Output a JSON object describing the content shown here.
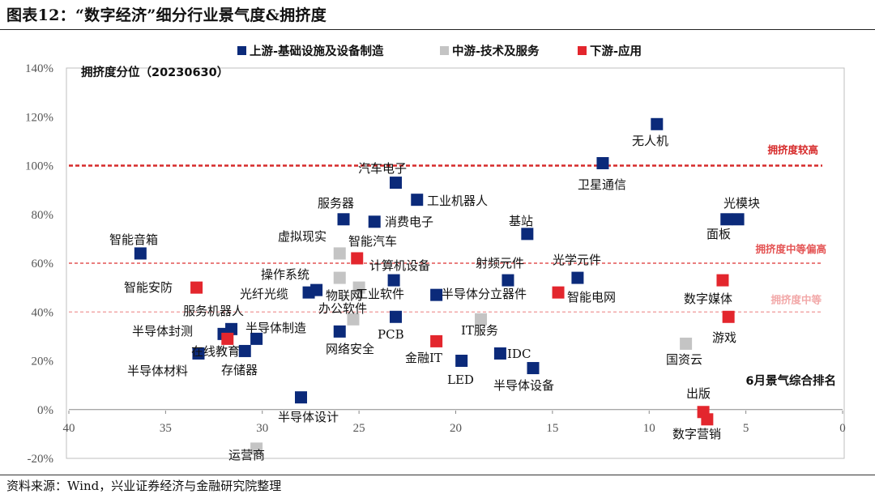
{
  "figure": {
    "title": "图表12：“数字经济”细分行业景气度&拥挤度",
    "source": "资料来源：Wind，兴业证券经济与金融研究院整理"
  },
  "chart_data": {
    "type": "scatter",
    "ylabel": "拥挤度分位（20230630）",
    "xlabel": "6月景气综合排名",
    "xlim": [
      40,
      0
    ],
    "ylim": [
      -0.2,
      1.4
    ],
    "x_ticks": [
      "40",
      "35",
      "30",
      "25",
      "20",
      "15",
      "10",
      "5",
      "0"
    ],
    "y_ticks": [
      "140%",
      "120%",
      "100%",
      "80%",
      "60%",
      "40%",
      "20%",
      "0%",
      "-20%"
    ],
    "legend_position": "top",
    "series": [
      {
        "name": "上游-基础设施及设备制造",
        "color": "#0b2a7a",
        "points": [
          {
            "label": "无人机",
            "x": 9.6,
            "y": 1.17
          },
          {
            "label": "卫星通信",
            "x": 12.4,
            "y": 1.01
          },
          {
            "label": "汽车电子",
            "x": 23.1,
            "y": 0.93
          },
          {
            "label": "工业机器人",
            "x": 22.0,
            "y": 0.86
          },
          {
            "label": "服务器",
            "x": 25.8,
            "y": 0.78
          },
          {
            "label": "消费电子",
            "x": 24.2,
            "y": 0.77
          },
          {
            "label": "光模块",
            "x": 5.4,
            "y": 0.78
          },
          {
            "label": "面板",
            "x": 6.0,
            "y": 0.78
          },
          {
            "label": "基站",
            "x": 16.3,
            "y": 0.72
          },
          {
            "label": "智能音箱",
            "x": 36.3,
            "y": 0.64
          },
          {
            "label": "射频元件",
            "x": 17.3,
            "y": 0.53
          },
          {
            "label": "光学元件",
            "x": 13.7,
            "y": 0.54
          },
          {
            "label": "计算机设备",
            "x": 23.2,
            "y": 0.53
          },
          {
            "label": "光纤光缆",
            "x": 27.6,
            "y": 0.48
          },
          {
            "label": "光纤光缆-2",
            "x": 27.2,
            "y": 0.49
          },
          {
            "label": "半导体分立器件",
            "x": 21.0,
            "y": 0.47
          },
          {
            "label": "PCB",
            "x": 23.1,
            "y": 0.38
          },
          {
            "label": "半导体封测",
            "x": 31.6,
            "y": 0.33
          },
          {
            "label": "半导体封测-2",
            "x": 32.0,
            "y": 0.31
          },
          {
            "label": "半导体制造",
            "x": 30.3,
            "y": 0.29
          },
          {
            "label": "存储器",
            "x": 30.9,
            "y": 0.24
          },
          {
            "label": "网络安全",
            "x": 26.0,
            "y": 0.32
          },
          {
            "label": "半导体材料",
            "x": 33.3,
            "y": 0.23
          },
          {
            "label": "IDC",
            "x": 17.7,
            "y": 0.23
          },
          {
            "label": "LED",
            "x": 19.7,
            "y": 0.2
          },
          {
            "label": "半导体设备",
            "x": 16.0,
            "y": 0.17
          },
          {
            "label": "半导体设计",
            "x": 28.0,
            "y": 0.05
          }
        ]
      },
      {
        "name": "中游-技术及服务",
        "color": "#c4c4c4",
        "points": [
          {
            "label": "虚拟现实",
            "x": 26.0,
            "y": 0.64
          },
          {
            "label": "操作系统",
            "x": 26.0,
            "y": 0.54
          },
          {
            "label": "工业软件",
            "x": 25.0,
            "y": 0.5
          },
          {
            "label": "办公软件",
            "x": 25.3,
            "y": 0.37
          },
          {
            "label": "IT服务",
            "x": 18.7,
            "y": 0.37
          },
          {
            "label": "国资云",
            "x": 8.1,
            "y": 0.27
          },
          {
            "label": "运营商",
            "x": 30.3,
            "y": -0.16
          }
        ]
      },
      {
        "name": "下游-应用",
        "color": "#e3262d",
        "points": [
          {
            "label": "物联网",
            "x": 25.1,
            "y": 0.62
          },
          {
            "label": "智能安防",
            "x": 33.4,
            "y": 0.5
          },
          {
            "label": "在线教育",
            "x": 31.8,
            "y": 0.29
          },
          {
            "label": "智能电网",
            "x": 14.7,
            "y": 0.48
          },
          {
            "label": "数字媒体",
            "x": 6.2,
            "y": 0.53
          },
          {
            "label": "游戏",
            "x": 5.9,
            "y": 0.38
          },
          {
            "label": "金融IT",
            "x": 21.0,
            "y": 0.28
          },
          {
            "label": "出版",
            "x": 7.2,
            "y": -0.01
          },
          {
            "label": "数字营销",
            "x": 7.0,
            "y": -0.04
          }
        ]
      }
    ],
    "reference_lines": [
      {
        "label": "拥挤度较高",
        "y": 1.0,
        "color": "#d62a2a"
      },
      {
        "label": "拥挤度中等偏高",
        "y": 0.6,
        "color": "#e45454"
      },
      {
        "label": "拥挤度中等",
        "y": 0.4,
        "color": "#f2a8a8"
      }
    ],
    "annotations": [
      {
        "text": "无人机"
      },
      {
        "text": "卫星通信"
      },
      {
        "text": "汽车电子"
      },
      {
        "text": "工业机器人"
      },
      {
        "text": "服务器"
      },
      {
        "text": "消费电子"
      },
      {
        "text": "光模块"
      },
      {
        "text": "面板"
      },
      {
        "text": "基站"
      },
      {
        "text": "智能音箱"
      },
      {
        "text": "虚拟现实"
      },
      {
        "text": "智能汽车"
      },
      {
        "text": "计算机设备"
      },
      {
        "text": "射频元件"
      },
      {
        "text": "光学元件"
      },
      {
        "text": "操作系统"
      },
      {
        "text": "物联网"
      },
      {
        "text": "光纤光缆"
      },
      {
        "text": "智能安防"
      },
      {
        "text": "工业软件"
      },
      {
        "text": "半导体分立器件"
      },
      {
        "text": "智能电网"
      },
      {
        "text": "数字媒体"
      },
      {
        "text": "服务机器人"
      },
      {
        "text": "办公软件"
      },
      {
        "text": "游戏"
      },
      {
        "text": "半导体封测"
      },
      {
        "text": "半导体制造"
      },
      {
        "text": "PCB"
      },
      {
        "text": "IT服务"
      },
      {
        "text": "在线教育"
      },
      {
        "text": "网络安全"
      },
      {
        "text": "IDC"
      },
      {
        "text": "金融IT"
      },
      {
        "text": "国资云"
      },
      {
        "text": "存储器"
      },
      {
        "text": "半导体材料"
      },
      {
        "text": "LED"
      },
      {
        "text": "半导体设备"
      },
      {
        "text": "出版"
      },
      {
        "text": "半导体设计"
      },
      {
        "text": "数字营销"
      },
      {
        "text": "运营商"
      }
    ]
  }
}
